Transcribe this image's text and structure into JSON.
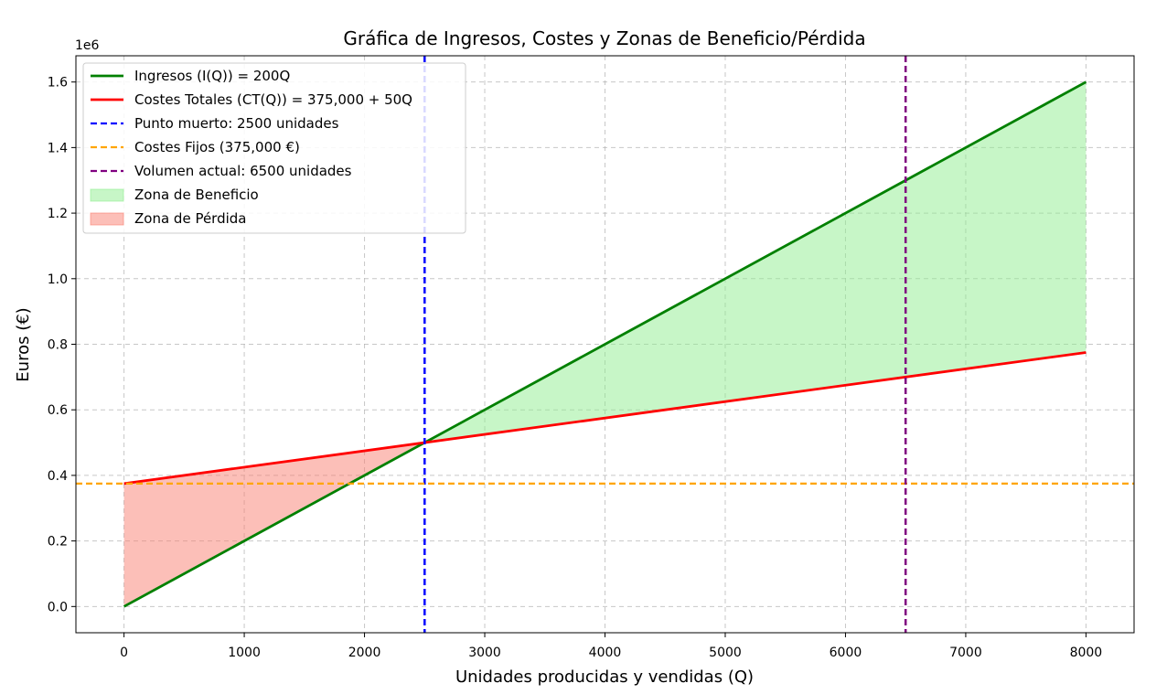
{
  "chart_data": {
    "type": "line",
    "title": "Gráfica de Ingresos, Costes y Zonas de Beneficio/Pérdida",
    "xlabel": "Unidades producidas y vendidas (Q)",
    "ylabel": "Euros (€)",
    "y_offset_label": "1e6",
    "xlim": [
      -400,
      8400
    ],
    "ylim": [
      -0.08,
      1.68
    ],
    "x_ticks": [
      0,
      1000,
      2000,
      3000,
      4000,
      5000,
      6000,
      7000,
      8000
    ],
    "x_tick_labels": [
      "0",
      "1000",
      "2000",
      "3000",
      "4000",
      "5000",
      "6000",
      "7000",
      "8000"
    ],
    "y_ticks": [
      0.0,
      0.2,
      0.4,
      0.6,
      0.8,
      1.0,
      1.2,
      1.4,
      1.6
    ],
    "y_tick_labels": [
      "0.0",
      "0.2",
      "0.4",
      "0.6",
      "0.8",
      "1.0",
      "1.2",
      "1.4",
      "1.6"
    ],
    "grid": true,
    "legend_position": "top-left",
    "series": [
      {
        "name": "Ingresos (I(Q)) = 200Q",
        "kind": "line",
        "style": "solid",
        "color": "#008000",
        "x": [
          0,
          8000
        ],
        "y": [
          0.0,
          1.6
        ]
      },
      {
        "name": "Costes Totales (CT(Q)) = 375,000 + 50Q",
        "kind": "line",
        "style": "solid",
        "color": "#ff0000",
        "x": [
          0,
          8000
        ],
        "y": [
          0.375,
          0.775
        ]
      },
      {
        "name": "Punto muerto: 2500 unidades",
        "kind": "vline",
        "style": "dashed",
        "color": "#0000ff",
        "x": 2500
      },
      {
        "name": "Costes Fijos (375,000 €)",
        "kind": "hline",
        "style": "dashed",
        "color": "#ffa500",
        "y": 0.375
      },
      {
        "name": "Volumen actual: 6500 unidades",
        "kind": "vline",
        "style": "dashed",
        "color": "#800080",
        "x": 6500
      },
      {
        "name": "Zona de Beneficio",
        "kind": "fill",
        "color": "#90ee90",
        "x_range": [
          2500,
          8000
        ]
      },
      {
        "name": "Zona de Pérdida",
        "kind": "fill",
        "color": "#fa8072",
        "x_range": [
          0,
          2500
        ]
      }
    ]
  }
}
